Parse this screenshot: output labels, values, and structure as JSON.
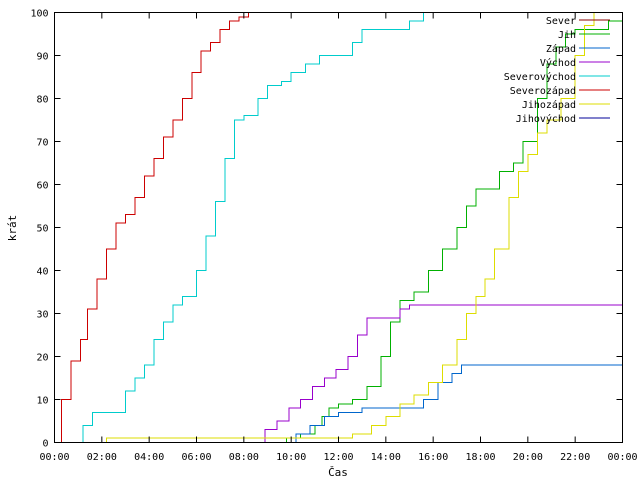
{
  "chart_data": {
    "type": "line",
    "title": "",
    "xlabel": "Čas",
    "ylabel": "krát",
    "xlim": [
      0,
      24
    ],
    "ylim": [
      0,
      100
    ],
    "grid": false,
    "legend_position": "top-right",
    "x_ticks": [
      {
        "value": 0,
        "label": "00:00"
      },
      {
        "value": 2,
        "label": "02:00"
      },
      {
        "value": 4,
        "label": "04:00"
      },
      {
        "value": 6,
        "label": "06:00"
      },
      {
        "value": 8,
        "label": "08:00"
      },
      {
        "value": 10,
        "label": "10:00"
      },
      {
        "value": 12,
        "label": "12:00"
      },
      {
        "value": 14,
        "label": "14:00"
      },
      {
        "value": 16,
        "label": "16:00"
      },
      {
        "value": 18,
        "label": "18:00"
      },
      {
        "value": 20,
        "label": "20:00"
      },
      {
        "value": 22,
        "label": "22:00"
      },
      {
        "value": 24,
        "label": "00:00"
      }
    ],
    "y_ticks": [
      {
        "value": 0,
        "label": "0"
      },
      {
        "value": 10,
        "label": "10"
      },
      {
        "value": 20,
        "label": "20"
      },
      {
        "value": 30,
        "label": "30"
      },
      {
        "value": 40,
        "label": "40"
      },
      {
        "value": 50,
        "label": "50"
      },
      {
        "value": 60,
        "label": "60"
      },
      {
        "value": 70,
        "label": "70"
      },
      {
        "value": 80,
        "label": "80"
      },
      {
        "value": 90,
        "label": "90"
      },
      {
        "value": 100,
        "label": "100"
      }
    ],
    "series": [
      {
        "name": "Sever",
        "color": "#8b0000",
        "x": [],
        "y": []
      },
      {
        "name": "Jih",
        "color": "#00b000",
        "x": [
          0,
          9.6,
          9.8,
          10.4,
          11.0,
          11.3,
          11.6,
          12.0,
          12.6,
          13.2,
          13.8,
          14.2,
          14.6,
          15.2,
          15.8,
          16.4,
          17.0,
          17.4,
          17.8,
          18.4,
          18.8,
          19.4,
          19.8,
          20.4,
          20.8,
          21.2,
          21.6,
          22.0,
          22.4,
          22.8,
          23.4,
          24.0
        ],
        "y": [
          0,
          0,
          1,
          2,
          4,
          6,
          8,
          9,
          10,
          13,
          20,
          28,
          33,
          35,
          40,
          45,
          50,
          55,
          59,
          59,
          63,
          65,
          70,
          80,
          88,
          92,
          95,
          96,
          96,
          96,
          98,
          98
        ]
      },
      {
        "name": "Západ",
        "color": "#0066cc",
        "x": [
          0,
          9.8,
          10.2,
          10.8,
          11.4,
          12.0,
          13.0,
          14.6,
          15.6,
          16.2,
          16.8,
          17.2,
          24.0
        ],
        "y": [
          0,
          0,
          2,
          4,
          6,
          7,
          8,
          8,
          10,
          14,
          16,
          18,
          18
        ]
      },
      {
        "name": "Východ",
        "color": "#9900cc",
        "x": [
          0,
          8.5,
          8.9,
          9.4,
          9.9,
          10.4,
          10.9,
          11.4,
          11.9,
          12.4,
          12.8,
          13.2,
          14.0,
          14.6,
          15.0,
          24.0
        ],
        "y": [
          0,
          0,
          3,
          5,
          8,
          10,
          13,
          15,
          17,
          20,
          25,
          29,
          29,
          31,
          32,
          32
        ]
      },
      {
        "name": "Severovýchod",
        "color": "#00cccc",
        "x": [
          0,
          1.0,
          1.2,
          1.6,
          2.8,
          3.0,
          3.4,
          3.8,
          4.2,
          4.6,
          5.0,
          5.4,
          5.8,
          6.0,
          6.4,
          6.8,
          7.2,
          7.6,
          8.0,
          8.6,
          9.0,
          9.6,
          10.0,
          10.6,
          11.2,
          12.0,
          12.6,
          13.0,
          13.6,
          14.4,
          15.0,
          15.6
        ],
        "y": [
          0,
          0,
          4,
          7,
          7,
          12,
          15,
          18,
          24,
          28,
          32,
          34,
          34,
          40,
          48,
          56,
          66,
          75,
          76,
          80,
          83,
          84,
          86,
          88,
          90,
          90,
          93,
          96,
          96,
          96,
          98,
          100
        ]
      },
      {
        "name": "Severozápad",
        "color": "#cc0000",
        "x": [
          0,
          0.3,
          0.7,
          1.1,
          1.4,
          1.8,
          2.2,
          2.6,
          3.0,
          3.4,
          3.8,
          4.2,
          4.6,
          5.0,
          5.4,
          5.8,
          6.2,
          6.6,
          7.0,
          7.4,
          7.8,
          8.2,
          8.6
        ],
        "y": [
          0,
          10,
          19,
          24,
          31,
          38,
          45,
          51,
          53,
          57,
          62,
          66,
          71,
          75,
          80,
          86,
          91,
          93,
          96,
          98,
          99,
          100,
          100
        ]
      },
      {
        "name": "Jihozápad",
        "color": "#dddd00",
        "x": [
          0,
          2.0,
          2.2,
          12.2,
          12.6,
          13.4,
          14.0,
          14.6,
          15.2,
          15.8,
          16.4,
          17.0,
          17.4,
          17.8,
          18.2,
          18.6,
          19.2,
          19.6,
          20.0,
          20.4,
          20.8,
          21.4,
          22.0,
          22.4,
          22.8,
          23.2
        ],
        "y": [
          0,
          0,
          1,
          1,
          2,
          4,
          6,
          9,
          11,
          14,
          18,
          24,
          30,
          34,
          38,
          45,
          57,
          63,
          67,
          72,
          75,
          80,
          90,
          97,
          100,
          100
        ]
      },
      {
        "name": "Jihovýchod",
        "color": "#000099",
        "x": [],
        "y": []
      }
    ]
  }
}
